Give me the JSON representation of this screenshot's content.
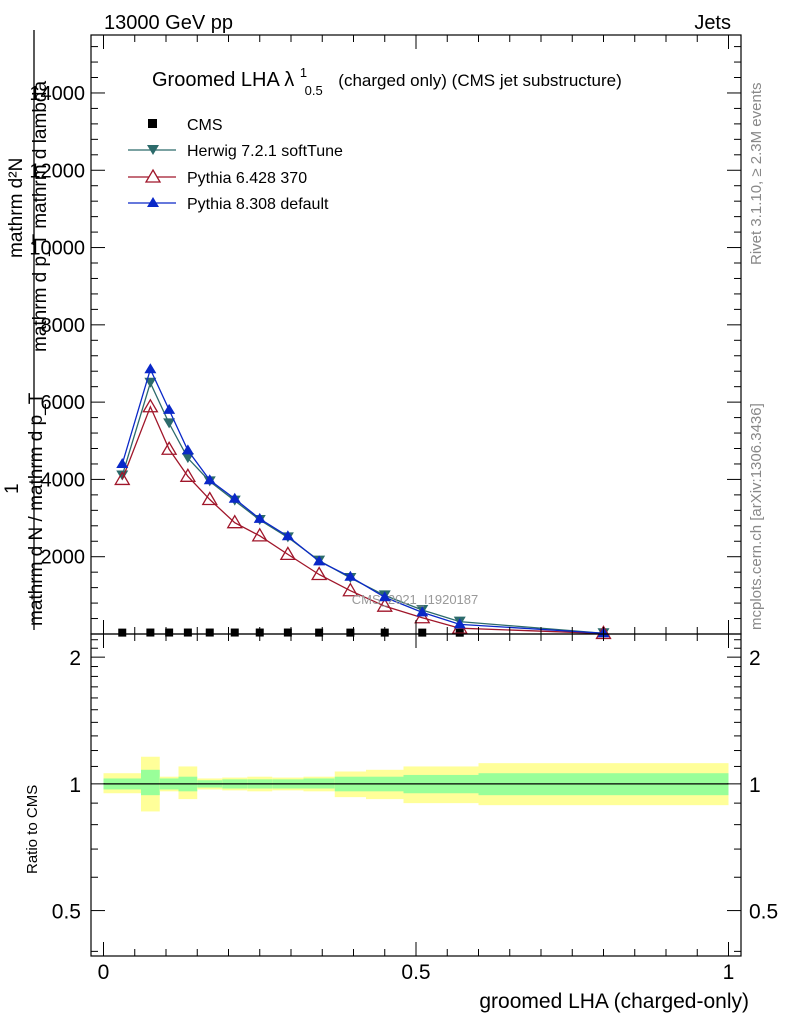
{
  "header": {
    "energy_label": "13000 GeV pp",
    "category_label": "Jets"
  },
  "title": {
    "main": "Groomed LHA λ",
    "sup": "1",
    "sub": "0.5",
    "rest": "(charged only) (CMS jet substructure)"
  },
  "side_labels": {
    "rivet": "Rivet 3.1.10, ≥ 2.3M events",
    "mcplots": "mcplots.cern.ch [arXiv:1306.3436]"
  },
  "watermark": "CMS_2021_I1920187",
  "ylabel_lines": [
    "mathrm d²N",
    "mathrm d p_T mathrm d lambda",
    "1",
    "mathrm d N / mathrm d p_T"
  ],
  "colors": {
    "cms": "#000000",
    "herwig": "#2c6b6b",
    "pythia6": "#a0162a",
    "pythia8": "#0a28c8",
    "band_inner": "#99ff99",
    "band_outer": "#ffff99"
  },
  "chart_data": [
    {
      "type": "line",
      "xlabel": "groomed LHA (charged-only)",
      "ylabel": "mathrm d²N / mathrm d p_T mathrm d lambda",
      "xlim": [
        -0.02,
        1.02
      ],
      "ylim": [
        0,
        15500
      ],
      "y_ticks": [
        {
          "v": 2000,
          "label": "2000"
        },
        {
          "v": 4000,
          "label": "4000"
        },
        {
          "v": 6000,
          "label": "6000"
        },
        {
          "v": 8000,
          "label": "8000"
        },
        {
          "v": 10000,
          "label": "10000"
        },
        {
          "v": 12000,
          "label": "12000"
        },
        {
          "v": 14000,
          "label": "14000"
        }
      ],
      "legend_position": "top-left",
      "series": [
        {
          "name": "CMS",
          "key": "cms",
          "marker": "square",
          "x": [
            0.03,
            0.075,
            0.105,
            0.135,
            0.17,
            0.21,
            0.25,
            0.295,
            0.345,
            0.395,
            0.45,
            0.51,
            0.57,
            0.8
          ],
          "y": [
            10,
            12,
            12,
            12,
            12,
            12,
            12,
            12,
            10,
            10,
            10,
            10,
            8,
            2
          ]
        },
        {
          "name": "Herwig 7.2.1 softTune",
          "key": "herwig",
          "marker": "triangle-down",
          "x": [
            0.03,
            0.075,
            0.105,
            0.135,
            0.17,
            0.21,
            0.25,
            0.295,
            0.345,
            0.395,
            0.45,
            0.51,
            0.57,
            0.8
          ],
          "y": [
            4100,
            6500,
            5450,
            4550,
            3950,
            3450,
            2950,
            2500,
            1900,
            1450,
            1000,
            620,
            320,
            20
          ]
        },
        {
          "name": "Pythia 6.428 370",
          "key": "pythia6",
          "marker": "triangle-up-open",
          "x": [
            0.03,
            0.075,
            0.105,
            0.135,
            0.17,
            0.21,
            0.25,
            0.295,
            0.345,
            0.395,
            0.45,
            0.51,
            0.57,
            0.8
          ],
          "y": [
            4000,
            5880,
            4780,
            4080,
            3480,
            2880,
            2540,
            2060,
            1540,
            1120,
            720,
            420,
            150,
            15
          ]
        },
        {
          "name": "Pythia 8.308 default",
          "key": "pythia8",
          "marker": "triangle-up",
          "x": [
            0.03,
            0.075,
            0.105,
            0.135,
            0.17,
            0.21,
            0.25,
            0.295,
            0.345,
            0.395,
            0.45,
            0.51,
            0.57,
            0.8
          ],
          "y": [
            4400,
            6850,
            5800,
            4750,
            3980,
            3500,
            2980,
            2530,
            1880,
            1480,
            950,
            560,
            250,
            20
          ]
        }
      ]
    },
    {
      "type": "area",
      "xlabel": "groomed LHA (charged-only)",
      "ylabel": "Ratio to CMS",
      "xlim": [
        -0.02,
        1.02
      ],
      "ylim": [
        0.39,
        2.27
      ],
      "log_y": true,
      "x_ticks": [
        {
          "v": 0,
          "label": "0"
        },
        {
          "v": 0.5,
          "label": "0.5"
        },
        {
          "v": 1,
          "label": "1"
        }
      ],
      "y_ticks": [
        {
          "v": 0.5,
          "label": "0.5"
        },
        {
          "v": 1,
          "label": "1"
        },
        {
          "v": 2,
          "label": "2"
        }
      ],
      "reference_line": 1,
      "bands": [
        {
          "x0": 0.0,
          "x1": 0.06,
          "inner": [
            0.97,
            1.03
          ],
          "outer": [
            0.95,
            1.06
          ]
        },
        {
          "x0": 0.06,
          "x1": 0.09,
          "inner": [
            0.94,
            1.08
          ],
          "outer": [
            0.86,
            1.16
          ]
        },
        {
          "x0": 0.09,
          "x1": 0.12,
          "inner": [
            0.97,
            1.03
          ],
          "outer": [
            0.96,
            1.04
          ]
        },
        {
          "x0": 0.12,
          "x1": 0.15,
          "inner": [
            0.96,
            1.04
          ],
          "outer": [
            0.92,
            1.1
          ]
        },
        {
          "x0": 0.15,
          "x1": 0.19,
          "inner": [
            0.98,
            1.02
          ],
          "outer": [
            0.97,
            1.03
          ]
        },
        {
          "x0": 0.19,
          "x1": 0.23,
          "inner": [
            0.975,
            1.025
          ],
          "outer": [
            0.965,
            1.035
          ]
        },
        {
          "x0": 0.23,
          "x1": 0.27,
          "inner": [
            0.975,
            1.025
          ],
          "outer": [
            0.96,
            1.04
          ]
        },
        {
          "x0": 0.27,
          "x1": 0.32,
          "inner": [
            0.975,
            1.025
          ],
          "outer": [
            0.965,
            1.035
          ]
        },
        {
          "x0": 0.32,
          "x1": 0.37,
          "inner": [
            0.975,
            1.03
          ],
          "outer": [
            0.96,
            1.04
          ]
        },
        {
          "x0": 0.37,
          "x1": 0.42,
          "inner": [
            0.96,
            1.04
          ],
          "outer": [
            0.93,
            1.07
          ]
        },
        {
          "x0": 0.42,
          "x1": 0.48,
          "inner": [
            0.96,
            1.04
          ],
          "outer": [
            0.92,
            1.08
          ]
        },
        {
          "x0": 0.48,
          "x1": 0.6,
          "inner": [
            0.95,
            1.05
          ],
          "outer": [
            0.9,
            1.1
          ]
        },
        {
          "x0": 0.6,
          "x1": 1.0,
          "inner": [
            0.94,
            1.06
          ],
          "outer": [
            0.89,
            1.12
          ]
        }
      ]
    }
  ]
}
